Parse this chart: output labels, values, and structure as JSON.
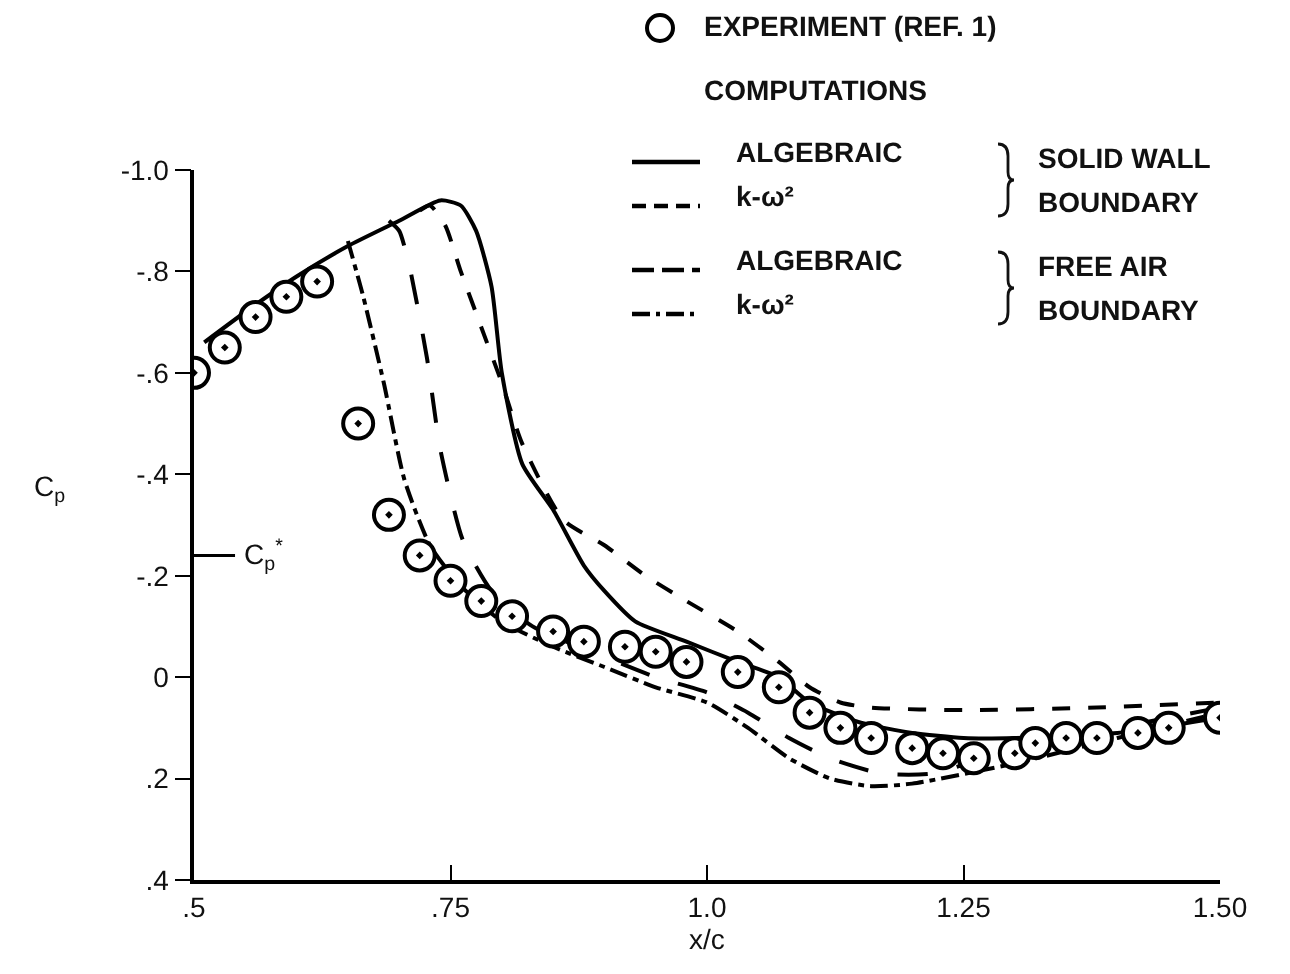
{
  "chart_data": {
    "type": "line",
    "xlabel": "x/c",
    "ylabel": "C$_{p}$",
    "xlim": [
      0.5,
      1.5
    ],
    "xticks": [
      {
        "value": 0.5,
        "label": ".5"
      },
      {
        "value": 0.75,
        "label": ".75"
      },
      {
        "value": 1.0,
        "label": "1.0"
      },
      {
        "value": 1.25,
        "label": "1.25"
      },
      {
        "value": 1.5,
        "label": "1.50"
      }
    ],
    "ylim": [
      0.4,
      -1.0
    ],
    "yticks": [
      {
        "value": -1.0,
        "label": "-1.0"
      },
      {
        "value": -0.8,
        "label": "-.8"
      },
      {
        "value": -0.6,
        "label": "-.6"
      },
      {
        "value": -0.4,
        "label": "-.4"
      },
      {
        "value": -0.2,
        "label": "-.2"
      },
      0,
      {
        "value": 0.2,
        "label": ".2"
      },
      {
        "value": 0.4,
        "label": ".4"
      }
    ],
    "grid": false,
    "legend": "top right",
    "annotations": [
      "COMPUTATIONS",
      "SOLID WALL\nBOUNDARY",
      "FREE AIR\nBOUNDARY"
    ],
    "ref_lines": [
      {
        "axis": "y",
        "value": -0.24,
        "label": "C$_{p}$$^{*}$"
      }
    ],
    "series": [
      {
        "name": "EXPERIMENT (REF. 1)",
        "type": "scatter",
        "marker": "circle",
        "color": "#000000",
        "x": [
          0.5,
          0.53,
          0.56,
          0.59,
          0.62,
          0.66,
          0.69,
          0.72,
          0.75,
          0.78,
          0.81,
          0.85,
          0.88,
          0.92,
          0.95,
          0.98,
          1.03,
          1.07,
          1.1,
          1.13,
          1.16,
          1.2,
          1.23,
          1.26,
          1.3,
          1.32,
          1.35,
          1.38,
          1.42,
          1.45,
          1.5
        ],
        "values": [
          -0.6,
          -0.65,
          -0.71,
          -0.75,
          -0.78,
          -0.5,
          -0.32,
          -0.24,
          -0.19,
          -0.15,
          -0.12,
          -0.09,
          -0.07,
          -0.06,
          -0.05,
          -0.03,
          -0.01,
          0.02,
          0.07,
          0.1,
          0.12,
          0.14,
          0.15,
          0.16,
          0.15,
          0.13,
          0.12,
          0.12,
          0.11,
          0.1,
          0.08
        ]
      },
      {
        "name": "ALGEBRAIC",
        "line_style": "solid",
        "color": "#000000",
        "x": [
          0.51,
          0.55,
          0.6,
          0.65,
          0.7,
          0.74,
          0.76,
          0.775,
          0.79,
          0.8,
          0.82,
          0.85,
          0.88,
          0.9,
          0.93,
          0.98,
          1.03,
          1.07,
          1.1,
          1.15,
          1.2,
          1.25,
          1.3,
          1.4,
          1.5
        ],
        "values": [
          -0.66,
          -0.72,
          -0.79,
          -0.85,
          -0.9,
          -0.94,
          -0.93,
          -0.88,
          -0.77,
          -0.6,
          -0.42,
          -0.33,
          -0.22,
          -0.17,
          -0.11,
          -0.07,
          -0.03,
          0.0,
          0.05,
          0.09,
          0.11,
          0.12,
          0.12,
          0.11,
          0.08
        ]
      },
      {
        "name": "k-ω²",
        "line_style": "dashed",
        "color": "#000000",
        "x": [
          0.72,
          0.73,
          0.745,
          0.76,
          0.78,
          0.8,
          0.82,
          0.86,
          0.9,
          0.94,
          0.98,
          1.03,
          1.07,
          1.1,
          1.13,
          1.16,
          1.25,
          1.38,
          1.5
        ],
        "values": [
          -0.92,
          -0.93,
          -0.89,
          -0.8,
          -0.69,
          -0.58,
          -0.46,
          -0.31,
          -0.26,
          -0.2,
          -0.15,
          -0.09,
          -0.03,
          0.02,
          0.05,
          0.06,
          0.065,
          0.06,
          0.05
        ]
      },
      {
        "name": "ALGEBRAIC",
        "line_style": "longdash",
        "color": "#000000",
        "x": [
          0.69,
          0.7,
          0.71,
          0.727,
          0.74,
          0.762,
          0.79,
          0.83,
          0.9,
          0.95,
          1.0,
          1.04,
          1.08,
          1.12,
          1.17,
          1.22,
          1.3,
          1.4,
          1.5
        ],
        "values": [
          -0.9,
          -0.88,
          -0.81,
          -0.63,
          -0.45,
          -0.27,
          -0.17,
          -0.1,
          -0.04,
          0.0,
          0.03,
          0.07,
          0.12,
          0.16,
          0.19,
          0.19,
          0.14,
          0.1,
          0.06
        ]
      },
      {
        "name": "k-ω²",
        "line_style": "dashdot",
        "color": "#000000",
        "x": [
          0.65,
          0.665,
          0.685,
          0.705,
          0.73,
          0.76,
          0.8,
          0.85,
          0.9,
          0.95,
          1.0,
          1.04,
          1.08,
          1.12,
          1.16,
          1.2,
          1.3,
          1.4,
          1.5
        ],
        "values": [
          -0.86,
          -0.75,
          -0.58,
          -0.39,
          -0.26,
          -0.18,
          -0.11,
          -0.06,
          -0.02,
          0.02,
          0.05,
          0.1,
          0.16,
          0.2,
          0.215,
          0.21,
          0.17,
          0.12,
          0.07
        ]
      }
    ]
  }
}
